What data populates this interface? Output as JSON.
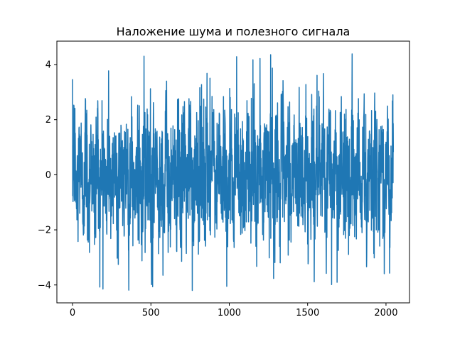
{
  "chart_data": {
    "type": "line",
    "title": "Наложение шума и полезного сигнала",
    "xlabel": "",
    "ylabel": "",
    "xlim": [
      -100,
      2150
    ],
    "ylim": [
      -4.65,
      4.85
    ],
    "x_ticks": [
      0,
      500,
      1000,
      1500,
      2000
    ],
    "x_tick_labels": [
      "0",
      "500",
      "1000",
      "1500",
      "2000"
    ],
    "y_ticks": [
      -4,
      -2,
      0,
      2,
      4
    ],
    "y_tick_labels": [
      "−4",
      "−2",
      "0",
      "2",
      "4"
    ],
    "grid": false,
    "legend": "none",
    "series": [
      {
        "color": "#1f77b4",
        "n_points": 2048,
        "x_start": 0,
        "x_end": 2047,
        "y_min": -4.3,
        "y_max": 4.4,
        "description": "dense noisy signal, values mostly within ±3.5, mean near 0"
      }
    ]
  }
}
